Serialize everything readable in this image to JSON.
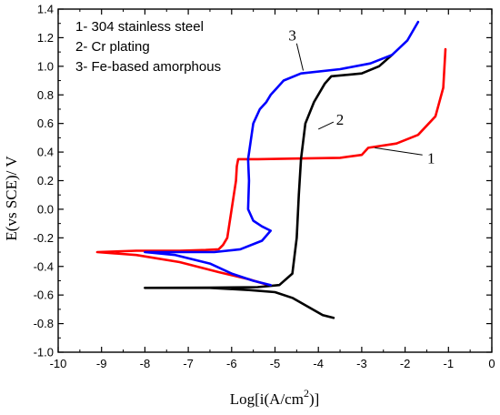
{
  "chart_data": {
    "type": "line",
    "xlabel": "Log[i(A/cm",
    "xlabel_sup": "2",
    "xlabel_end": ")]",
    "ylabel": "E(vs SCE)/ V",
    "xlim": [
      -10,
      0
    ],
    "ylim": [
      -1.0,
      1.4
    ],
    "grid": false,
    "x_ticks": [
      -10,
      -9,
      -8,
      -7,
      -6,
      -5,
      -4,
      -3,
      -2,
      -1,
      0
    ],
    "y_ticks": [
      -1.0,
      -0.8,
      -0.6,
      -0.4,
      -0.2,
      0.0,
      0.2,
      0.4,
      0.6,
      0.8,
      1.0,
      1.2,
      1.4
    ],
    "x_tick_labels": [
      "-10",
      "-9",
      "-8",
      "-7",
      "-6",
      "-5",
      "-4",
      "-3",
      "-2",
      "-1",
      "0"
    ],
    "y_tick_labels": [
      "-1.0",
      "-0.8",
      "-0.6",
      "-0.4",
      "-0.2",
      "0.0",
      "0.2",
      "0.4",
      "0.6",
      "0.8",
      "1.0",
      "1.2",
      "1.4"
    ],
    "legend": {
      "placement": "top-left",
      "entries": [
        "1- 304 stainless steel",
        "2- Cr plating",
        "3- Fe-based  amorphous"
      ]
    },
    "series": [
      {
        "name": "1",
        "color": "#ff0000",
        "points": [
          [
            -5.15,
            -0.53
          ],
          [
            -5.6,
            -0.49
          ],
          [
            -6.3,
            -0.44
          ],
          [
            -7.2,
            -0.37
          ],
          [
            -8.2,
            -0.32
          ],
          [
            -9.1,
            -0.3
          ],
          [
            -8.2,
            -0.29
          ],
          [
            -7.2,
            -0.29
          ],
          [
            -6.6,
            -0.285
          ],
          [
            -6.3,
            -0.28
          ],
          [
            -6.2,
            -0.25
          ],
          [
            -6.1,
            -0.2
          ],
          [
            -6.05,
            -0.1
          ],
          [
            -6.0,
            0.0
          ],
          [
            -5.95,
            0.1
          ],
          [
            -5.9,
            0.2
          ],
          [
            -5.88,
            0.3
          ],
          [
            -5.85,
            0.35
          ],
          [
            -5.4,
            0.35
          ],
          [
            -4.5,
            0.355
          ],
          [
            -3.5,
            0.36
          ],
          [
            -3.0,
            0.38
          ],
          [
            -2.85,
            0.43
          ],
          [
            -2.2,
            0.46
          ],
          [
            -1.7,
            0.52
          ],
          [
            -1.3,
            0.65
          ],
          [
            -1.12,
            0.85
          ],
          [
            -1.07,
            1.12
          ]
        ]
      },
      {
        "name": "2",
        "color": "#000000",
        "points": [
          [
            -3.65,
            -0.76
          ],
          [
            -3.9,
            -0.74
          ],
          [
            -4.25,
            -0.68
          ],
          [
            -4.6,
            -0.62
          ],
          [
            -5.0,
            -0.58
          ],
          [
            -5.6,
            -0.565
          ],
          [
            -6.5,
            -0.55
          ],
          [
            -8.0,
            -0.55
          ],
          [
            -6.5,
            -0.548
          ],
          [
            -5.4,
            -0.545
          ],
          [
            -4.9,
            -0.53
          ],
          [
            -4.6,
            -0.45
          ],
          [
            -4.5,
            -0.2
          ],
          [
            -4.45,
            0.1
          ],
          [
            -4.4,
            0.35
          ],
          [
            -4.3,
            0.6
          ],
          [
            -4.1,
            0.75
          ],
          [
            -3.85,
            0.88
          ],
          [
            -3.7,
            0.93
          ],
          [
            -3.0,
            0.95
          ],
          [
            -2.6,
            1.0
          ],
          [
            -2.3,
            1.08
          ]
        ]
      },
      {
        "name": "3",
        "color": "#0000ff",
        "points": [
          [
            -5.1,
            -0.53
          ],
          [
            -5.5,
            -0.5
          ],
          [
            -6.0,
            -0.45
          ],
          [
            -6.5,
            -0.38
          ],
          [
            -7.3,
            -0.32
          ],
          [
            -8.0,
            -0.3
          ],
          [
            -7.2,
            -0.3
          ],
          [
            -6.4,
            -0.3
          ],
          [
            -5.8,
            -0.28
          ],
          [
            -5.3,
            -0.22
          ],
          [
            -5.1,
            -0.15
          ],
          [
            -5.3,
            -0.12
          ],
          [
            -5.5,
            -0.08
          ],
          [
            -5.62,
            0.0
          ],
          [
            -5.6,
            0.2
          ],
          [
            -5.62,
            0.35
          ],
          [
            -5.55,
            0.5
          ],
          [
            -5.5,
            0.6
          ],
          [
            -5.35,
            0.7
          ],
          [
            -5.2,
            0.75
          ],
          [
            -5.1,
            0.8
          ],
          [
            -4.95,
            0.85
          ],
          [
            -4.8,
            0.9
          ],
          [
            -4.4,
            0.95
          ],
          [
            -3.5,
            0.98
          ],
          [
            -2.8,
            1.02
          ],
          [
            -2.3,
            1.08
          ],
          [
            -1.95,
            1.18
          ],
          [
            -1.7,
            1.31
          ]
        ]
      }
    ],
    "curve_labels": [
      {
        "text": "1",
        "x": -1.4,
        "y": 0.36,
        "line_from": [
          -2.7,
          0.43
        ],
        "line_to": [
          -1.6,
          0.38
        ]
      },
      {
        "text": "2",
        "x": -3.5,
        "y": 0.63,
        "line_from": [
          -4.0,
          0.56
        ],
        "line_to": [
          -3.65,
          0.61
        ]
      },
      {
        "text": "3",
        "x": -4.6,
        "y": 1.22,
        "line_from": [
          -4.35,
          0.97
        ],
        "line_to": [
          -4.5,
          1.16
        ]
      }
    ]
  }
}
